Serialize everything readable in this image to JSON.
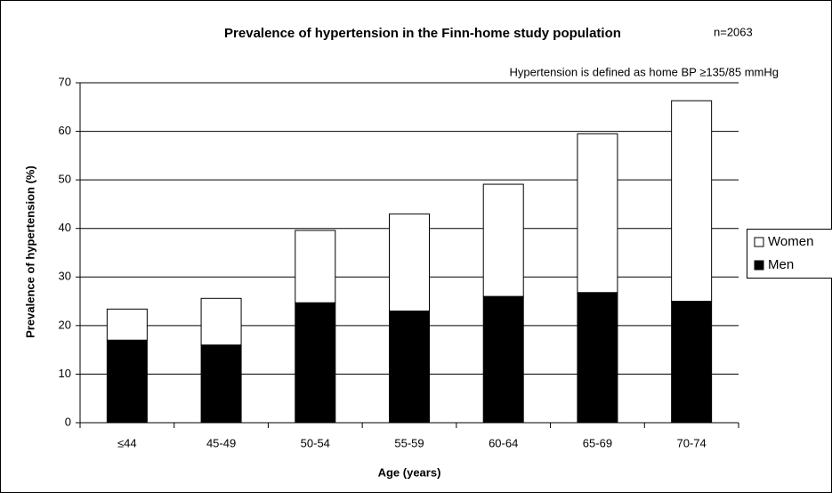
{
  "chart_data": {
    "type": "bar",
    "stacked": true,
    "title": "Prevalence of hypertension in the Finn-home study population",
    "annotations": [
      "n=2063",
      "Hypertension is defined as home BP ≥135/85 mmHg"
    ],
    "x_label": "Age (years)",
    "y_label": "Prevalence of hypertension (%)",
    "categories": [
      "≤44",
      "45-49",
      "50-54",
      "55-59",
      "60-64",
      "65-69",
      "70-74"
    ],
    "series": [
      {
        "name": "Men",
        "color": "#000000",
        "values": [
          17,
          16,
          24.7,
          23,
          26,
          26.8,
          25
        ]
      },
      {
        "name": "Women",
        "color": "#ffffff",
        "values": [
          6.4,
          9.6,
          14.9,
          20,
          23.1,
          32.7,
          41.3
        ]
      }
    ],
    "ylim": [
      0,
      70
    ],
    "yticks": [
      0,
      10,
      20,
      30,
      40,
      50,
      60,
      70
    ],
    "grid": true,
    "legend": "right"
  }
}
